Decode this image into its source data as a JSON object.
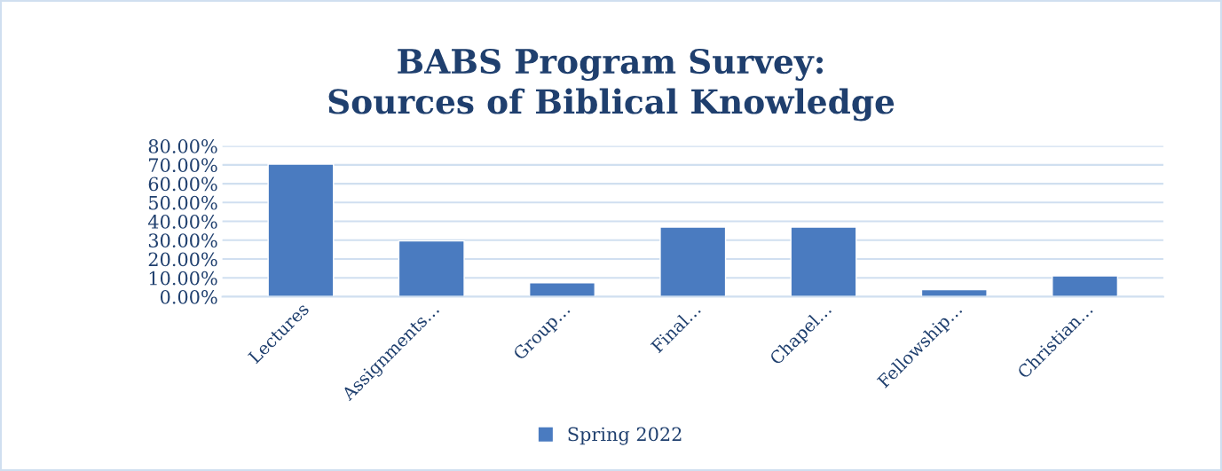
{
  "chart_data": {
    "type": "bar",
    "title": "BABS Program Survey:\nSources of Biblical Knowledge",
    "categories": [
      "Lectures",
      "Assignments…",
      "Group…",
      "Final…",
      "Chapel…",
      "Fellowship…",
      "Christian…"
    ],
    "series": [
      {
        "name": "Spring 2022",
        "color": "#4a7bc0",
        "values": [
          70.4,
          29.6,
          7.4,
          37.0,
          37.0,
          3.7,
          11.1
        ]
      }
    ],
    "ylim": [
      0,
      80
    ],
    "yticks": [
      {
        "value": 0,
        "label": "0.00%"
      },
      {
        "value": 10,
        "label": "10.00%"
      },
      {
        "value": 20,
        "label": "20.00%"
      },
      {
        "value": 30,
        "label": "30.00%"
      },
      {
        "value": 40,
        "label": "40.00%"
      },
      {
        "value": 50,
        "label": "50.00%"
      },
      {
        "value": 60,
        "label": "60.00%"
      },
      {
        "value": 70,
        "label": "70.00%"
      },
      {
        "value": 80,
        "label": "80.00%"
      }
    ],
    "grid": "y",
    "legend": "bottom"
  }
}
